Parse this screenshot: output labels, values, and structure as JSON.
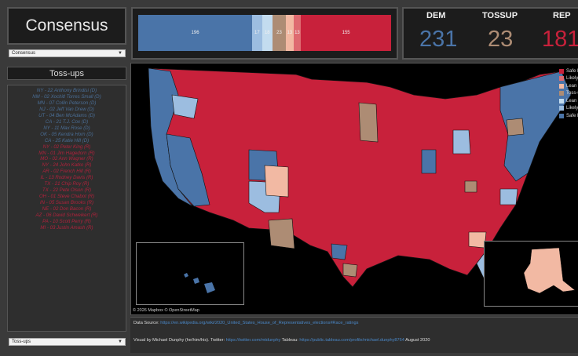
{
  "title": "Consensus",
  "rating_select": "Consensus",
  "tossup_header": "Toss-ups",
  "tossup_select": "Toss-ups",
  "seat_bar": [
    {
      "label": "196",
      "value": 196,
      "color": "#4a74a8"
    },
    {
      "label": "17",
      "value": 17,
      "color": "#9cbde0"
    },
    {
      "label": "18",
      "value": 18,
      "color": "#c3dcef"
    },
    {
      "label": "23",
      "value": 23,
      "color": "#ad8c74"
    },
    {
      "label": "13",
      "value": 13,
      "color": "#f2b9a3"
    },
    {
      "label": "13",
      "value": 13,
      "color": "#de6a70"
    },
    {
      "label": "155",
      "value": 155,
      "color": "#c8213b"
    }
  ],
  "totals": {
    "dem_label": "DEM",
    "dem_value": "231",
    "tossup_label": "TOSSUP",
    "tossup_value": "23",
    "rep_label": "REP",
    "rep_value": "181"
  },
  "tossups": [
    {
      "text": "NY - 22    Anthony Brindisi (D)",
      "party": "dem"
    },
    {
      "text": "NM - 02    Xochitl Torres Small (D)",
      "party": "dem"
    },
    {
      "text": "MN - 07    Collin Peterson (D)",
      "party": "dem"
    },
    {
      "text": "NJ - 02    Jeff Van Drew (D)",
      "party": "dem"
    },
    {
      "text": "UT - 04    Ben McAdams (D)",
      "party": "dem"
    },
    {
      "text": "CA - 21    T.J. Cox (D)",
      "party": "dem"
    },
    {
      "text": "NY - 11    Max Rose (D)",
      "party": "dem"
    },
    {
      "text": "OK - 05    Kendra Horn (D)",
      "party": "dem"
    },
    {
      "text": "CA - 25    Katie Hill (D)",
      "party": "dem"
    },
    {
      "text": "NY - 02    Peter King (R)",
      "party": "rep"
    },
    {
      "text": "MN - 01    Jim Hagedorn (R)",
      "party": "rep"
    },
    {
      "text": "MO - 02    Ann Wagner (R)",
      "party": "rep"
    },
    {
      "text": "NY - 24    John Katko (R)",
      "party": "rep"
    },
    {
      "text": "AR - 02    French Hill (R)",
      "party": "rep"
    },
    {
      "text": "IL - 13    Rodney Davis (R)",
      "party": "rep"
    },
    {
      "text": "TX - 21    Chip Roy (R)",
      "party": "rep"
    },
    {
      "text": "TX - 22    Pete Olson (R)",
      "party": "rep"
    },
    {
      "text": "OH - 01    Steve Chabot (R)",
      "party": "rep"
    },
    {
      "text": "IN - 05    Susan Brooks (R)",
      "party": "rep"
    },
    {
      "text": "NE - 02    Don Bacon (R)",
      "party": "rep"
    },
    {
      "text": "AZ - 06    David Schweikert (R)",
      "party": "rep"
    },
    {
      "text": "PA - 10    Scott Perry (R)",
      "party": "rep"
    },
    {
      "text": "MI - 03    Justin Amash (R)",
      "party": "rep"
    }
  ],
  "legend": [
    {
      "label": "Safe R",
      "color": "#c8213b"
    },
    {
      "label": "Likely R",
      "color": "#de6a70"
    },
    {
      "label": "Lean R",
      "color": "#f2b9a3"
    },
    {
      "label": "Toss-up",
      "color": "#ad8c74"
    },
    {
      "label": "Lean D",
      "color": "#c3dcef"
    },
    {
      "label": "Likely D",
      "color": "#9cbde0"
    },
    {
      "label": "Safe D",
      "color": "#4a74a8"
    }
  ],
  "map_credit": "© 2026 Mapbox  © OpenStreetMap",
  "footer": {
    "source_prefix": "Data Source: ",
    "source_link": "https://en.wikipedia.org/wiki/2020_United_States_House_of_Representatives_elections#Race_ratings",
    "visual_prefix": "Visual by Michael Dunphy (he/him/his). Twitter: ",
    "twitter_link": "https://twitter.com/mtdunphy",
    "tableau_prefix": " Tableau: ",
    "tableau_link": "https://public.tableau.com/profile/michael.dunphy8764",
    "date": " August 2020"
  }
}
